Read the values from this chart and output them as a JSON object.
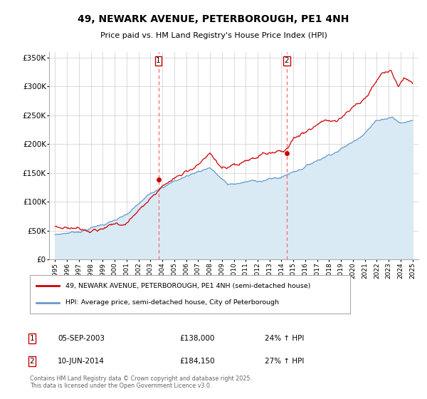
{
  "title": "49, NEWARK AVENUE, PETERBOROUGH, PE1 4NH",
  "subtitle": "Price paid vs. HM Land Registry's House Price Index (HPI)",
  "legend_line1": "49, NEWARK AVENUE, PETERBOROUGH, PE1 4NH (semi-detached house)",
  "legend_line2": "HPI: Average price, semi-detached house, City of Peterborough",
  "marker1_date": "05-SEP-2003",
  "marker1_price": "£138,000",
  "marker1_hpi": "24% ↑ HPI",
  "marker2_date": "10-JUN-2014",
  "marker2_price": "£184,150",
  "marker2_hpi": "27% ↑ HPI",
  "copyright": "Contains HM Land Registry data © Crown copyright and database right 2025.\nThis data is licensed under the Open Government Licence v3.0.",
  "line_color_red": "#CC0000",
  "line_color_blue": "#6699CC",
  "fill_color_blue": "#DAEAF5",
  "marker_dot_color": "#CC0000",
  "vline_color": "#FF6666",
  "vline1_x": 2003.67,
  "vline2_x": 2014.44,
  "marker1_x": 2003.67,
  "marker1_y": 138000,
  "marker2_x": 2014.44,
  "marker2_y": 184150,
  "ylim_min": 0,
  "ylim_max": 360000,
  "xlim_min": 1994.5,
  "xlim_max": 2025.5,
  "yticks": [
    0,
    50000,
    100000,
    150000,
    200000,
    250000,
    300000,
    350000
  ],
  "xticks": [
    1995,
    1996,
    1997,
    1998,
    1999,
    2000,
    2001,
    2002,
    2003,
    2004,
    2005,
    2006,
    2007,
    2008,
    2009,
    2010,
    2011,
    2012,
    2013,
    2014,
    2015,
    2016,
    2017,
    2018,
    2019,
    2020,
    2021,
    2022,
    2023,
    2024,
    2025
  ],
  "background_color": "#FFFFFF",
  "plot_bg_color": "#FFFFFF",
  "grid_color": "#CCCCCC"
}
